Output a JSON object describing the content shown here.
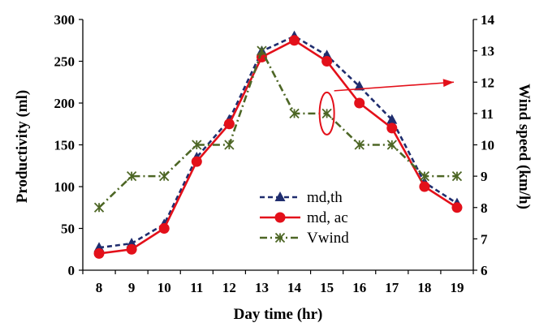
{
  "chart_data": {
    "type": "line",
    "xlabel": "Day time (hr)",
    "ylabel_left": "Productivity (ml)",
    "ylabel_right": "Wind speed (km/h)",
    "x": [
      8,
      9,
      10,
      11,
      12,
      13,
      14,
      15,
      16,
      17,
      18,
      19
    ],
    "y_left_range": [
      0,
      300
    ],
    "y_left_ticks": [
      0,
      50,
      100,
      150,
      200,
      250,
      300
    ],
    "y_right_range": [
      6,
      14
    ],
    "y_right_ticks": [
      6,
      7,
      8,
      9,
      10,
      11,
      12,
      13,
      14
    ],
    "series": [
      {
        "name": "md,th",
        "axis": "left",
        "color": "#1f2d6e",
        "style": "dashed",
        "marker": "triangle",
        "values": [
          27,
          32,
          55,
          135,
          180,
          262,
          280,
          257,
          220,
          180,
          105,
          80
        ]
      },
      {
        "name": "md, ac",
        "axis": "left",
        "color": "#e3101a",
        "style": "solid",
        "marker": "circle",
        "values": [
          20,
          25,
          50,
          130,
          175,
          255,
          275,
          250,
          200,
          170,
          100,
          75
        ]
      },
      {
        "name": "Vwind",
        "axis": "right",
        "color": "#4d6625",
        "style": "dashdot",
        "marker": "asterisk",
        "values": [
          8,
          9,
          9,
          10,
          10,
          13,
          11,
          11,
          10,
          10,
          9,
          9
        ]
      }
    ],
    "annotation": {
      "type": "ellipse-with-arrow",
      "color": "#e3101a",
      "points_to": "right-axis",
      "at_x": 15,
      "at_y_right": 11
    },
    "grid": false,
    "legend": "center"
  }
}
